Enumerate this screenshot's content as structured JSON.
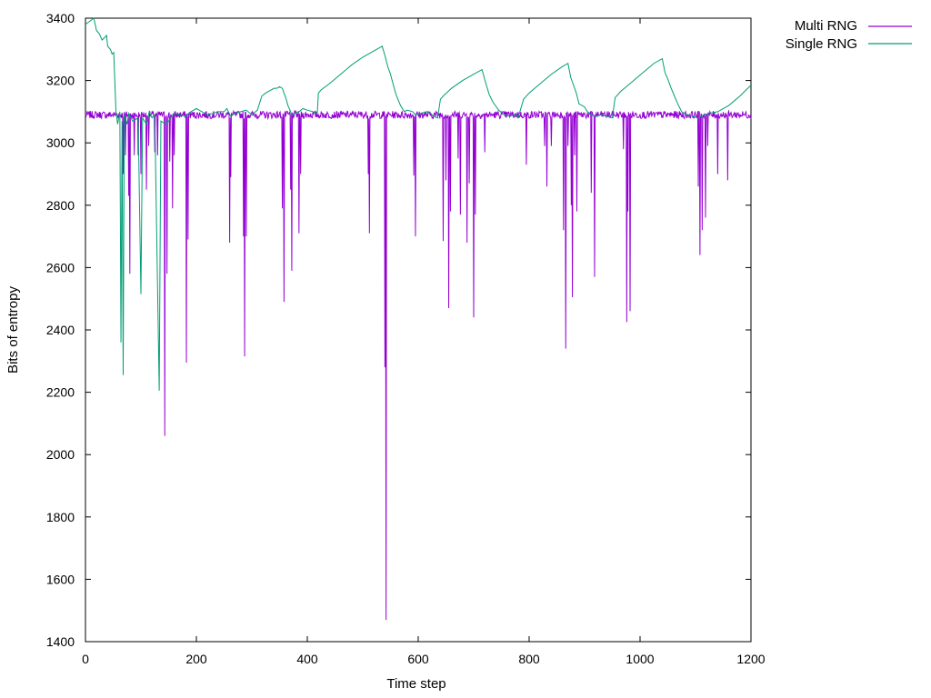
{
  "chart_data": {
    "type": "line",
    "title": "",
    "xlabel": "Time step",
    "ylabel": "Bits of entropy",
    "xlim": [
      0,
      1200
    ],
    "ylim": [
      1400,
      3400
    ],
    "x_ticks": [
      0,
      200,
      400,
      600,
      800,
      1000,
      1200
    ],
    "y_ticks": [
      1400,
      1600,
      1800,
      2000,
      2200,
      2400,
      2600,
      2800,
      3000,
      3200,
      3400
    ],
    "grid": false,
    "legend_position": "outside-top-right",
    "series": [
      {
        "name": "Multi RNG",
        "color": "#9400d3",
        "baseline": 3090,
        "noise": 12,
        "drops": [
          [
            68,
            2900
          ],
          [
            72,
            2960
          ],
          [
            78,
            2830
          ],
          [
            80,
            2580
          ],
          [
            88,
            2960
          ],
          [
            95,
            2960
          ],
          [
            100,
            2900
          ],
          [
            110,
            2850
          ],
          [
            114,
            2990
          ],
          [
            125,
            2970
          ],
          [
            130,
            2960
          ],
          [
            143,
            2060
          ],
          [
            147,
            2580
          ],
          [
            152,
            2940
          ],
          [
            157,
            2790
          ],
          [
            160,
            2960
          ],
          [
            182,
            2295
          ],
          [
            185,
            2690
          ],
          [
            260,
            2680
          ],
          [
            262,
            2890
          ],
          [
            285,
            2700
          ],
          [
            287,
            2315
          ],
          [
            290,
            2700
          ],
          [
            355,
            2790
          ],
          [
            358,
            2490
          ],
          [
            370,
            2850
          ],
          [
            372,
            2590
          ],
          [
            385,
            2710
          ],
          [
            388,
            2900
          ],
          [
            510,
            2900
          ],
          [
            512,
            2710
          ],
          [
            540,
            2280
          ],
          [
            542,
            1470
          ],
          [
            592,
            2895
          ],
          [
            595,
            2700
          ],
          [
            645,
            2685
          ],
          [
            650,
            2880
          ],
          [
            655,
            2470
          ],
          [
            658,
            2780
          ],
          [
            672,
            2950
          ],
          [
            676,
            2770
          ],
          [
            688,
            2680
          ],
          [
            692,
            2870
          ],
          [
            700,
            2440
          ],
          [
            703,
            2770
          ],
          [
            720,
            2970
          ],
          [
            795,
            2930
          ],
          [
            828,
            2990
          ],
          [
            832,
            2860
          ],
          [
            840,
            2990
          ],
          [
            862,
            2720
          ],
          [
            866,
            2340
          ],
          [
            870,
            2990
          ],
          [
            876,
            2800
          ],
          [
            878,
            2505
          ],
          [
            882,
            2960
          ],
          [
            886,
            2780
          ],
          [
            912,
            2840
          ],
          [
            918,
            2570
          ],
          [
            970,
            2980
          ],
          [
            976,
            2425
          ],
          [
            978,
            2780
          ],
          [
            982,
            2460
          ],
          [
            1105,
            2860
          ],
          [
            1108,
            2640
          ],
          [
            1112,
            2720
          ],
          [
            1118,
            2760
          ],
          [
            1122,
            2990
          ],
          [
            1140,
            2900
          ],
          [
            1158,
            2880
          ]
        ],
        "legend_label": "Multi RNG"
      },
      {
        "name": "Single RNG",
        "color": "#009e73",
        "legend_label": "Single RNG",
        "points": [
          [
            0,
            3380
          ],
          [
            15,
            3400
          ],
          [
            20,
            3360
          ],
          [
            25,
            3350
          ],
          [
            30,
            3330
          ],
          [
            33,
            3335
          ],
          [
            38,
            3345
          ],
          [
            40,
            3310
          ],
          [
            45,
            3300
          ],
          [
            48,
            3285
          ],
          [
            51,
            3290
          ],
          [
            55,
            3100
          ],
          [
            58,
            3060
          ],
          [
            62,
            3100
          ],
          [
            64,
            2360
          ],
          [
            66,
            3070
          ],
          [
            68,
            2255
          ],
          [
            70,
            3090
          ],
          [
            75,
            3060
          ],
          [
            78,
            3095
          ],
          [
            85,
            3070
          ],
          [
            95,
            3080
          ],
          [
            100,
            2515
          ],
          [
            103,
            3080
          ],
          [
            110,
            3060
          ],
          [
            115,
            3100
          ],
          [
            120,
            3080
          ],
          [
            125,
            3090
          ],
          [
            133,
            2205
          ],
          [
            136,
            3070
          ],
          [
            145,
            3060
          ],
          [
            150,
            3070
          ],
          [
            155,
            3085
          ],
          [
            160,
            3095
          ],
          [
            170,
            3090
          ],
          [
            180,
            3085
          ],
          [
            190,
            3100
          ],
          [
            200,
            3110
          ],
          [
            210,
            3100
          ],
          [
            220,
            3090
          ],
          [
            230,
            3095
          ],
          [
            240,
            3100
          ],
          [
            250,
            3100
          ],
          [
            255,
            3110
          ],
          [
            262,
            3085
          ],
          [
            270,
            3095
          ],
          [
            280,
            3100
          ],
          [
            290,
            3105
          ],
          [
            300,
            3090
          ],
          [
            310,
            3105
          ],
          [
            318,
            3150
          ],
          [
            325,
            3160
          ],
          [
            330,
            3165
          ],
          [
            335,
            3170
          ],
          [
            340,
            3175
          ],
          [
            345,
            3175
          ],
          [
            350,
            3180
          ],
          [
            355,
            3175
          ],
          [
            358,
            3160
          ],
          [
            362,
            3140
          ],
          [
            365,
            3120
          ],
          [
            370,
            3100
          ],
          [
            372,
            3090
          ],
          [
            378,
            3095
          ],
          [
            385,
            3100
          ],
          [
            392,
            3110
          ],
          [
            400,
            3105
          ],
          [
            410,
            3100
          ],
          [
            418,
            3095
          ],
          [
            420,
            3160
          ],
          [
            425,
            3170
          ],
          [
            440,
            3190
          ],
          [
            460,
            3220
          ],
          [
            480,
            3250
          ],
          [
            500,
            3275
          ],
          [
            520,
            3295
          ],
          [
            535,
            3310
          ],
          [
            540,
            3280
          ],
          [
            545,
            3245
          ],
          [
            550,
            3220
          ],
          [
            556,
            3180
          ],
          [
            560,
            3155
          ],
          [
            568,
            3120
          ],
          [
            575,
            3100
          ],
          [
            580,
            3105
          ],
          [
            590,
            3100
          ],
          [
            595,
            3090
          ],
          [
            605,
            3095
          ],
          [
            615,
            3100
          ],
          [
            622,
            3095
          ],
          [
            628,
            3085
          ],
          [
            635,
            3080
          ],
          [
            640,
            3140
          ],
          [
            645,
            3150
          ],
          [
            660,
            3175
          ],
          [
            680,
            3200
          ],
          [
            700,
            3220
          ],
          [
            715,
            3235
          ],
          [
            722,
            3190
          ],
          [
            728,
            3155
          ],
          [
            735,
            3130
          ],
          [
            745,
            3105
          ],
          [
            755,
            3090
          ],
          [
            765,
            3085
          ],
          [
            775,
            3090
          ],
          [
            780,
            3080
          ],
          [
            790,
            3140
          ],
          [
            800,
            3160
          ],
          [
            820,
            3190
          ],
          [
            840,
            3220
          ],
          [
            860,
            3245
          ],
          [
            870,
            3255
          ],
          [
            875,
            3210
          ],
          [
            880,
            3185
          ],
          [
            885,
            3160
          ],
          [
            890,
            3125
          ],
          [
            900,
            3115
          ],
          [
            905,
            3100
          ],
          [
            912,
            3090
          ],
          [
            920,
            3085
          ],
          [
            930,
            3090
          ],
          [
            940,
            3085
          ],
          [
            950,
            3080
          ],
          [
            955,
            3145
          ],
          [
            965,
            3165
          ],
          [
            985,
            3195
          ],
          [
            1005,
            3225
          ],
          [
            1025,
            3255
          ],
          [
            1040,
            3270
          ],
          [
            1045,
            3225
          ],
          [
            1050,
            3205
          ],
          [
            1055,
            3180
          ],
          [
            1062,
            3150
          ],
          [
            1068,
            3125
          ],
          [
            1075,
            3100
          ],
          [
            1085,
            3090
          ],
          [
            1095,
            3085
          ],
          [
            1105,
            3080
          ],
          [
            1115,
            3090
          ],
          [
            1125,
            3095
          ],
          [
            1140,
            3100
          ],
          [
            1160,
            3120
          ],
          [
            1180,
            3150
          ],
          [
            1200,
            3185
          ]
        ]
      }
    ]
  }
}
